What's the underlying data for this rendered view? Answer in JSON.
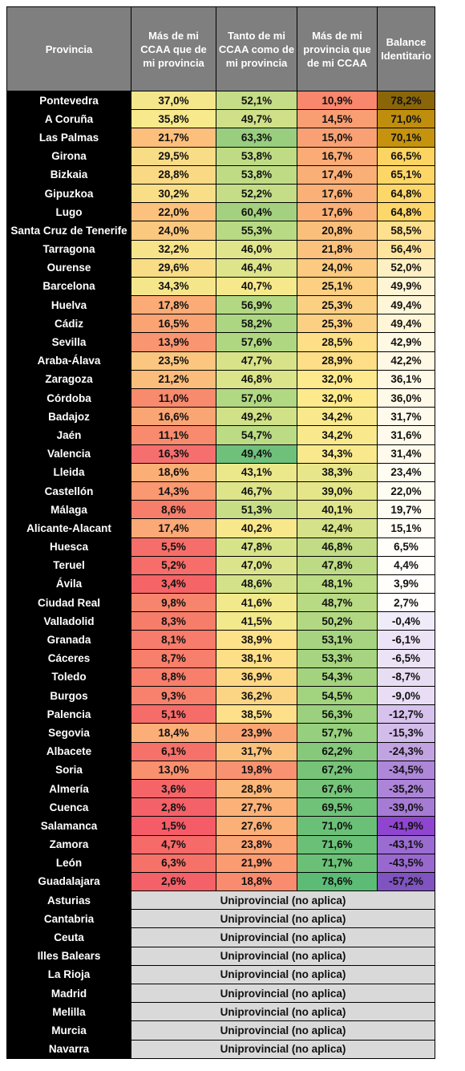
{
  "headers": [
    "Provincia",
    "Más de mi CCAA que de mi provincia",
    "Tanto de mi CCAA como de mi provincia",
    "Más de mi provincia que de mi CCAA",
    "Balance Identitario"
  ],
  "rows": [
    {
      "p": "Pontevedra",
      "a": "37,0%",
      "b": "52,1%",
      "c": "10,9%",
      "d": "78,2%",
      "ca": "#f4e68a",
      "cb": "#c4dd86",
      "cc": "#f8876d",
      "cd": "#8a6608"
    },
    {
      "p": "A Coruña",
      "a": "35,8%",
      "b": "49,7%",
      "c": "14,5%",
      "d": "71,0%",
      "ca": "#f7e98c",
      "cb": "#cfe088",
      "cc": "#f99e72",
      "cd": "#bf8e0d"
    },
    {
      "p": "Las Palmas",
      "a": "21,7%",
      "b": "63,3%",
      "c": "15,0%",
      "d": "70,1%",
      "ca": "#fdc07c",
      "cb": "#98ce7e",
      "cc": "#f9a174",
      "cd": "#c6930e"
    },
    {
      "p": "Girona",
      "a": "29,5%",
      "b": "53,8%",
      "c": "16,7%",
      "d": "66,5%",
      "ca": "#f8dc86",
      "cb": "#bfdc85",
      "cc": "#faab76",
      "cd": "#fdd461"
    },
    {
      "p": "Bizkaia",
      "a": "28,8%",
      "b": "53,8%",
      "c": "17,4%",
      "d": "65,1%",
      "ca": "#f9d984",
      "cb": "#bfdc85",
      "cc": "#faaf77",
      "cd": "#fdd667"
    },
    {
      "p": "Gipuzkoa",
      "a": "30,2%",
      "b": "52,2%",
      "c": "17,6%",
      "d": "64,8%",
      "ca": "#f8df87",
      "cb": "#c4dd86",
      "cc": "#fab077",
      "cd": "#fdd769"
    },
    {
      "p": "Lugo",
      "a": "22,0%",
      "b": "60,4%",
      "c": "17,6%",
      "d": "64,8%",
      "ca": "#fcc27d",
      "cb": "#a3d17f",
      "cc": "#fab077",
      "cd": "#fdd769"
    },
    {
      "p": "Santa Cruz de Tenerife",
      "a": "24,0%",
      "b": "55,3%",
      "c": "20,8%",
      "d": "58,5%",
      "ca": "#fbc880",
      "cb": "#b9da84",
      "cc": "#fbbf7c",
      "cd": "#fee08f"
    },
    {
      "p": "Tarragona",
      "a": "32,2%",
      "b": "46,0%",
      "c": "21,8%",
      "d": "56,4%",
      "ca": "#f7e48a",
      "cb": "#e0e58b",
      "cc": "#fbc27d",
      "cd": "#fee49d"
    },
    {
      "p": "Ourense",
      "a": "29,6%",
      "b": "46,4%",
      "c": "24,0%",
      "d": "52,0%",
      "ca": "#f8dd86",
      "cb": "#dee48a",
      "cc": "#fcca80",
      "cd": "#fff0c3"
    },
    {
      "p": "Barcelona",
      "a": "34,3%",
      "b": "40,7%",
      "c": "25,1%",
      "d": "49,9%",
      "ca": "#f6e68b",
      "cb": "#f6e98c",
      "cc": "#fccf82",
      "cd": "#fff4d4"
    },
    {
      "p": "Huelva",
      "a": "17,8%",
      "b": "56,9%",
      "c": "25,3%",
      "d": "49,4%",
      "ca": "#fbab76",
      "cb": "#b2d883",
      "cc": "#fcd083",
      "cd": "#fff5d7"
    },
    {
      "p": "Cádiz",
      "a": "16,5%",
      "b": "58,2%",
      "c": "25,3%",
      "d": "49,4%",
      "ca": "#faa474",
      "cb": "#acd682",
      "cc": "#fcd083",
      "cd": "#fff5d7"
    },
    {
      "p": "Sevilla",
      "a": "13,9%",
      "b": "57,6%",
      "c": "28,5%",
      "d": "42,9%",
      "ca": "#f99570",
      "cb": "#afd782",
      "cc": "#fede86",
      "cd": "#fff8e3"
    },
    {
      "p": "Araba-Álava",
      "a": "23,5%",
      "b": "47,7%",
      "c": "28,9%",
      "d": "42,2%",
      "ca": "#fbc67f",
      "cb": "#d8e389",
      "cc": "#fedf87",
      "cd": "#fff8e4"
    },
    {
      "p": "Zaragoza",
      "a": "21,2%",
      "b": "46,8%",
      "c": "32,0%",
      "d": "36,1%",
      "ca": "#fbbd7b",
      "cb": "#dce48a",
      "cc": "#feea8c",
      "cd": "#fff9e8"
    },
    {
      "p": "Córdoba",
      "a": "11,0%",
      "b": "57,0%",
      "c": "32,0%",
      "d": "36,0%",
      "ca": "#f88a6d",
      "cb": "#b1d882",
      "cc": "#feea8c",
      "cd": "#fff9e8"
    },
    {
      "p": "Badajoz",
      "a": "16,6%",
      "b": "49,2%",
      "c": "34,2%",
      "d": "31,7%",
      "ca": "#faa574",
      "cb": "#d1e188",
      "cc": "#f9e98c",
      "cd": "#fffaeb"
    },
    {
      "p": "Jaén",
      "a": "11,1%",
      "b": "54,7%",
      "c": "34,2%",
      "d": "31,6%",
      "ca": "#f88b6d",
      "cb": "#bbdb85",
      "cc": "#f9e98c",
      "cd": "#fffaeb"
    },
    {
      "p": "Valencia",
      "a": "16,3%",
      "b": "49,4%",
      "c": "34,3%",
      "d": "31,4%",
      "ca": "#f56f6f",
      "cb": "#6fc07b",
      "cc": "#f9e98c",
      "cd": "#fffaeb"
    },
    {
      "p": "Lleida",
      "a": "18,6%",
      "b": "43,1%",
      "c": "38,3%",
      "d": "23,4%",
      "ca": "#fbaf77",
      "cb": "#ebe78b",
      "cc": "#e8e68b",
      "cd": "#fffcf0"
    },
    {
      "p": "Castellón",
      "a": "14,3%",
      "b": "46,7%",
      "c": "39,0%",
      "d": "22,0%",
      "ca": "#f99871",
      "cb": "#dde48a",
      "cc": "#e5e58a",
      "cd": "#fffcf1"
    },
    {
      "p": "Málaga",
      "a": "8,6%",
      "b": "51,3%",
      "c": "40,1%",
      "d": "19,7%",
      "ca": "#f77e6b",
      "cb": "#c7de87",
      "cc": "#e0e48a",
      "cd": "#fffcf2"
    },
    {
      "p": "Alicante-Alacant",
      "a": "17,4%",
      "b": "40,2%",
      "c": "42,4%",
      "d": "15,1%",
      "ca": "#fba976",
      "cb": "#f8e88b",
      "cc": "#d5e289",
      "cd": "#fffdf5"
    },
    {
      "p": "Huesca",
      "a": "5,5%",
      "b": "47,8%",
      "c": "46,8%",
      "d": "6,5%",
      "ca": "#f66e69",
      "cb": "#d7e389",
      "cc": "#c1dc85",
      "cd": "#fffefa"
    },
    {
      "p": "Teruel",
      "a": "5,2%",
      "b": "47,0%",
      "c": "47,8%",
      "d": "4,4%",
      "ca": "#f66d69",
      "cb": "#dbe48a",
      "cc": "#bddb84",
      "cd": "#fffefb"
    },
    {
      "p": "Ávila",
      "a": "3,4%",
      "b": "48,6%",
      "c": "48,1%",
      "d": "3,9%",
      "ca": "#f56467",
      "cb": "#d3e289",
      "cc": "#bbdb84",
      "cd": "#fffefb"
    },
    {
      "p": "Ciudad Real",
      "a": "9,8%",
      "b": "41,6%",
      "c": "48,7%",
      "d": "2,7%",
      "ca": "#f7846c",
      "cb": "#f2e88c",
      "cc": "#b8da84",
      "cd": "#fffefc"
    },
    {
      "p": "Valladolid",
      "a": "8,3%",
      "b": "41,5%",
      "c": "50,2%",
      "d": "-0,4%",
      "ca": "#f77d6b",
      "cb": "#f2e88c",
      "cc": "#b2d883",
      "cd": "#f0ebf8"
    },
    {
      "p": "Granada",
      "a": "8,1%",
      "b": "38,9%",
      "c": "53,1%",
      "d": "-6,1%",
      "ca": "#f77c6b",
      "cb": "#fde28a",
      "cc": "#a7d480",
      "cd": "#ece4f6"
    },
    {
      "p": "Cáceres",
      "a": "8,7%",
      "b": "38,1%",
      "c": "53,3%",
      "d": "-6,5%",
      "ca": "#f77f6b",
      "cb": "#fddf88",
      "cc": "#a7d480",
      "cd": "#ece4f6"
    },
    {
      "p": "Toledo",
      "a": "8,8%",
      "b": "36,9%",
      "c": "54,3%",
      "d": "-8,7%",
      "ca": "#f77f6b",
      "cb": "#fdd986",
      "cc": "#a3d37f",
      "cd": "#e8def4"
    },
    {
      "p": "Burgos",
      "a": "9,3%",
      "b": "36,2%",
      "c": "54,5%",
      "d": "-9,0%",
      "ca": "#f7816c",
      "cb": "#fcd584",
      "cc": "#a2d37f",
      "cd": "#e8ddf4"
    },
    {
      "p": "Palencia",
      "a": "5,1%",
      "b": "38,5%",
      "c": "56,3%",
      "d": "-12,7%",
      "ca": "#f66c69",
      "cb": "#fde089",
      "cc": "#9bd07e",
      "cd": "#d6c2ec"
    },
    {
      "p": "Segovia",
      "a": "18,4%",
      "b": "23,9%",
      "c": "57,7%",
      "d": "-15,3%",
      "ca": "#fbae77",
      "cb": "#faa474",
      "cc": "#96cf7d",
      "cd": "#d2bcea"
    },
    {
      "p": "Albacete",
      "a": "6,1%",
      "b": "31,7%",
      "c": "62,2%",
      "d": "-24,3%",
      "ca": "#f67169",
      "cb": "#fbc27d",
      "cc": "#86c97b",
      "cd": "#c2a3e2"
    },
    {
      "p": "Soria",
      "a": "13,0%",
      "b": "19,8%",
      "c": "67,2%",
      "d": "-34,5%",
      "ca": "#f9916f",
      "cb": "#f99270",
      "cc": "#77c479",
      "cd": "#ae87d9"
    },
    {
      "p": "Almería",
      "a": "3,6%",
      "b": "28,8%",
      "c": "67,6%",
      "d": "-35,2%",
      "ca": "#f56568",
      "cb": "#fbb679",
      "cc": "#76c479",
      "cd": "#ad85d8"
    },
    {
      "p": "Cuenca",
      "a": "2,8%",
      "b": "27,7%",
      "c": "69,5%",
      "d": "-39,0%",
      "ca": "#f56168",
      "cb": "#fbb178",
      "cc": "#70c278",
      "cd": "#a57bd4"
    },
    {
      "p": "Salamanca",
      "a": "1,5%",
      "b": "27,6%",
      "c": "71,0%",
      "d": "-41,9%",
      "ca": "#f55c67",
      "cb": "#fbb078",
      "cc": "#6bc077",
      "cd": "#8f45cf"
    },
    {
      "p": "Zamora",
      "a": "4,7%",
      "b": "23,8%",
      "c": "71,6%",
      "d": "-43,1%",
      "ca": "#f66a69",
      "cb": "#fba474",
      "cc": "#6ac077",
      "cd": "#9a6bd0"
    },
    {
      "p": "León",
      "a": "6,3%",
      "b": "21,9%",
      "c": "71,7%",
      "d": "-43,5%",
      "ca": "#f67269",
      "cb": "#fa9b72",
      "cc": "#6ac077",
      "cd": "#9968cf"
    },
    {
      "p": "Guadalajara",
      "a": "2,6%",
      "b": "18,8%",
      "c": "78,6%",
      "d": "-57,2%",
      "ca": "#f56168",
      "cb": "#f98b6e",
      "cc": "#5cbc76",
      "cd": "#7f53c0"
    }
  ],
  "uniprov_label": "Uniprovincial (no aplica)",
  "uniprov": [
    "Asturias",
    "Cantabria",
    "Ceuta",
    "Illes Balears",
    "La Rioja",
    "Madrid",
    "Melilla",
    "Murcia",
    "Navarra"
  ]
}
